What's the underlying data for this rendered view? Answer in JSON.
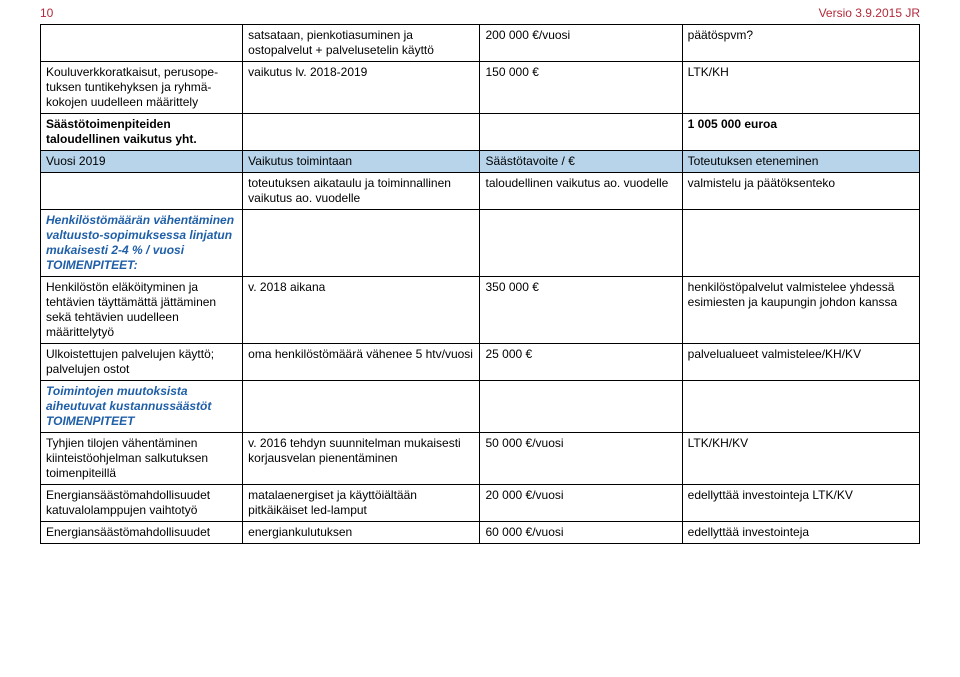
{
  "header": {
    "page_number": "10",
    "version": "Versio 3.9.2015 JR",
    "text_color": "#b22a3a"
  },
  "rows": [
    {
      "c1": "",
      "c2": "satsataan, pienkotiasuminen ja ostopalvelut + palvelusetelin käyttö",
      "c3": "200 000 €/vuosi",
      "c4": "päätöspvm?"
    },
    {
      "c1": "Kouluverkkoratkaisut, perusope-tuksen tuntikehyksen ja ryhmä-kokojen uudelleen määrittely",
      "c2": "vaikutus lv. 2018-2019",
      "c3": "150 000 €",
      "c4": "LTK/KH"
    },
    {
      "c1": "Säästötoimenpiteiden taloudellinen vaikutus yht.",
      "c1_bold": true,
      "c2": "",
      "c3": "",
      "c4": "1 005 000 euroa",
      "c4_bold": true
    },
    {
      "highlight": true,
      "c1": "Vuosi 2019",
      "c2": "Vaikutus toimintaan",
      "c3": "Säästötavoite / €",
      "c4": "Toteutuksen eteneminen"
    },
    {
      "c1": "",
      "c2": "toteutuksen aikataulu ja toiminnallinen vaikutus ao. vuodelle",
      "c3": "taloudellinen vaikutus ao. vuodelle",
      "c4": "valmistelu ja päätöksenteko"
    },
    {
      "blue_ital": true,
      "c1": "Henkilöstömäärän vähentäminen valtuusto-sopimuksessa linjatun mukaisesti 2-4 % / vuosi\nTOIMENPITEET:",
      "c2": "",
      "c3": "",
      "c4": ""
    },
    {
      "c1": "Henkilöstön eläköityminen ja tehtävien täyttämättä jättäminen sekä tehtävien uudelleen määrittelytyö",
      "c2": "v. 2018 aikana",
      "c3": "350 000 €",
      "c4": "henkilöstöpalvelut valmistelee yhdessä esimiesten ja kaupungin johdon kanssa"
    },
    {
      "c1": "Ulkoistettujen palvelujen käyttö; palvelujen ostot",
      "c2": "oma henkilöstömäärä vähenee 5 htv/vuosi",
      "c3": "25 000 €",
      "c4": "palvelualueet valmistelee/KH/KV"
    },
    {
      "blue_ital": true,
      "c1": "Toimintojen muutoksista aiheutuvat kustannussäästöt\nTOIMENPITEET",
      "c2": "",
      "c3": "",
      "c4": ""
    },
    {
      "c1": "Tyhjien tilojen vähentäminen kiinteistöohjelman salkutuksen toimenpiteillä",
      "c2": "v. 2016 tehdyn suunnitelman mukaisesti korjausvelan pienentäminen",
      "c3": "50 000 €/vuosi",
      "c4": "LTK/KH/KV"
    },
    {
      "c1": "Energiansäästömahdollisuudet katuvalolamppujen vaihtotyö",
      "c2": "matalaenergiset ja käyttöiältään pitkäikäiset led-lamput",
      "c3": "20 000 €/vuosi",
      "c4": "edellyttää investointeja LTK/KV"
    },
    {
      "c1": "Energiansäästömahdollisuudet",
      "c2": "energiankulutuksen",
      "c3": "60 000 €/vuosi",
      "c4": "edellyttää investointeja"
    }
  ]
}
